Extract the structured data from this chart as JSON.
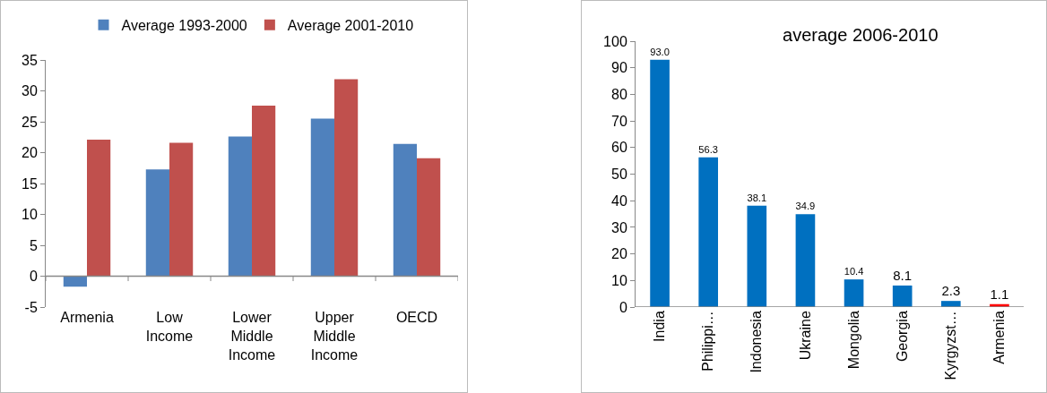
{
  "chart_data": [
    {
      "type": "bar",
      "categories": [
        "Armenia",
        "Low Income",
        "Lower Middle Income",
        "Upper Middle Income",
        "OECD"
      ],
      "series": [
        {
          "name": "Average 1993-2000",
          "color": "#4f81bd",
          "values": [
            -1.7,
            17.3,
            22.6,
            25.5,
            21.4
          ]
        },
        {
          "name": "Average 2001-2010",
          "color": "#c0504d",
          "values": [
            22.1,
            21.6,
            27.6,
            31.9,
            19.1
          ]
        }
      ],
      "ylim": [
        -5,
        35
      ],
      "yticks": [
        -5,
        0,
        5,
        10,
        15,
        20,
        25,
        30,
        35
      ],
      "grid": false,
      "legend": "top"
    },
    {
      "type": "bar",
      "title": "average 2006-2010",
      "categories": [
        "India",
        "Philippi…",
        "Indonesia",
        "Ukraine",
        "Mongolia",
        "Georgia",
        "Kyrgyzst…",
        "Armenia"
      ],
      "values": [
        93.0,
        56.3,
        38.1,
        34.9,
        10.4,
        8.1,
        2.3,
        1.1
      ],
      "value_labels": [
        "93.0",
        "56.3",
        "38.1",
        "34.9",
        "10.4",
        "8.1",
        "2.3",
        "1.1"
      ],
      "colors": [
        "#0070c0",
        "#0070c0",
        "#0070c0",
        "#0070c0",
        "#0070c0",
        "#0070c0",
        "#0070c0",
        "#ff0000"
      ],
      "ylim": [
        0,
        100
      ],
      "yticks": [
        0,
        10,
        20,
        30,
        40,
        50,
        60,
        70,
        80,
        90,
        100
      ],
      "grid": false,
      "legend": false
    }
  ]
}
